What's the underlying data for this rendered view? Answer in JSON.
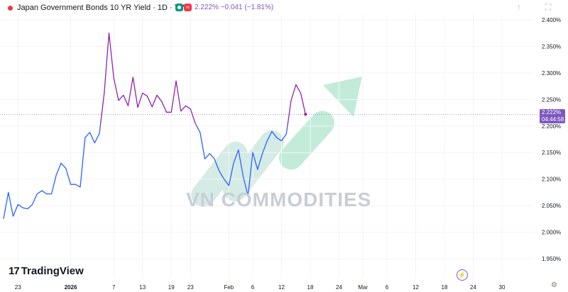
{
  "header": {
    "title": "Japan Government Bonds 10 YR Yield · 1D · TVC",
    "wave_glyph": "≈",
    "quote": "2.222% −0.041 (−1.81%)"
  },
  "price_badge": {
    "price": "2.222%",
    "countdown": "04:44:58"
  },
  "brand": {
    "logo_glyph": "17",
    "name": "TradingView"
  },
  "watermark": "VN COMMODITIES",
  "icons": {
    "arrow_up": "↑",
    "maximize": "⛶",
    "bolt": "⚡",
    "gear": "⚙"
  },
  "colors": {
    "line_purple": "#8e24aa",
    "line_blue": "#2962ff",
    "accent": "#7e57c2",
    "positive": "#089981",
    "negative": "#f23645"
  },
  "chart_data": {
    "type": "line",
    "title": "Japan Government Bonds 10 YR Yield · 1D · TVC",
    "xlabel": "",
    "ylabel": "",
    "ylim": [
      1.925,
      2.425
    ],
    "yticks": [
      1.95,
      2.0,
      2.05,
      2.1,
      2.15,
      2.2,
      2.25,
      2.3,
      2.35,
      2.4
    ],
    "ytick_labels": [
      "1.950%",
      "2.000%",
      "2.050%",
      "2.100%",
      "2.150%",
      "2.200%",
      "2.250%",
      "2.300%",
      "2.350%",
      "2.400%"
    ],
    "xticks": [
      {
        "label": "23",
        "x": 3
      },
      {
        "label": "2026",
        "x": 14
      },
      {
        "label": "7",
        "x": 23
      },
      {
        "label": "13",
        "x": 29
      },
      {
        "label": "19",
        "x": 35
      },
      {
        "label": "23",
        "x": 39
      },
      {
        "label": "Feb",
        "x": 47
      },
      {
        "label": "6",
        "x": 52
      },
      {
        "label": "12",
        "x": 58
      },
      {
        "label": "18",
        "x": 64
      },
      {
        "label": "24",
        "x": 70
      },
      {
        "label": "Mar",
        "x": 75
      },
      {
        "label": "6",
        "x": 80
      },
      {
        "label": "12",
        "x": 86
      },
      {
        "label": "18",
        "x": 92
      },
      {
        "label": "24",
        "x": 98
      },
      {
        "label": "30",
        "x": 104
      }
    ],
    "last_value": 2.222,
    "series": [
      {
        "values": [
          2.025,
          2.075,
          2.03,
          2.052,
          2.046,
          2.044,
          2.052,
          2.072,
          2.078,
          2.072,
          2.072,
          2.108,
          2.13,
          2.12,
          2.09,
          2.09,
          2.085,
          2.178,
          2.188,
          2.168,
          2.186,
          2.262,
          2.375,
          2.29,
          2.248,
          2.258,
          2.238,
          2.292,
          2.235,
          2.262,
          2.256,
          2.236,
          2.258,
          2.246,
          2.226,
          2.226,
          2.285,
          2.228,
          2.238,
          2.232,
          2.205,
          2.188,
          2.138,
          2.148,
          2.138,
          2.115,
          2.1,
          2.088,
          2.13,
          2.155,
          2.105,
          2.068,
          2.15,
          2.118,
          2.148,
          2.172,
          2.19,
          2.178,
          2.172,
          2.185,
          2.248,
          2.278,
          2.262,
          2.222
        ]
      }
    ]
  }
}
